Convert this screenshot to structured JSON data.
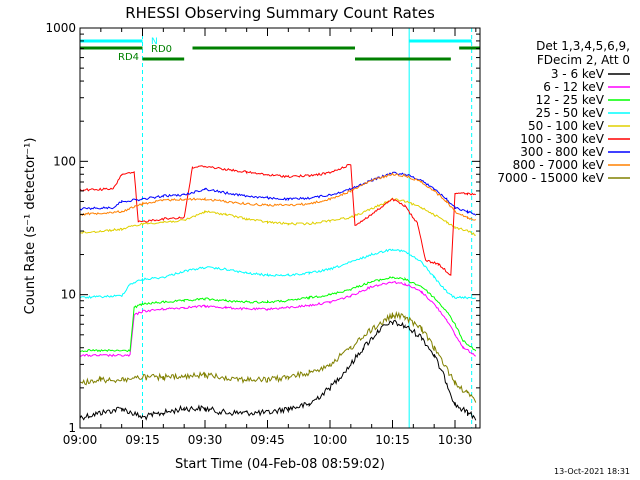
{
  "chart_data": {
    "type": "line",
    "title": "RHESSI Observing Summary Count Rates",
    "xlabel": "Start Time (04-Feb-08 08:59:02)",
    "ylabel": "Count Rate (s⁻¹ detector⁻¹)",
    "y_scale": "log",
    "ylim": [
      1,
      1000
    ],
    "xlim": [
      "09:00",
      "10:36"
    ],
    "x_ticks": [
      "09:00",
      "09:15",
      "09:30",
      "09:45",
      "10:00",
      "10:15",
      "10:30"
    ],
    "y_ticks": [
      "1",
      "10",
      "100",
      "1000"
    ],
    "grid": false,
    "footer_date": "13-Oct-2021 18:31",
    "legend_header": [
      "Det 1,3,4,5,6,9,",
      "FDecim 2, Att 0"
    ],
    "legend_position": "right",
    "markers": {
      "vlines_solid": [
        "09:00",
        "10:19"
      ],
      "vlines_dashed": [
        "09:15",
        "10:34"
      ]
    },
    "flags": [
      {
        "label": "N",
        "color": "#00ffff",
        "segments": [
          [
            "09:00",
            "09:15"
          ],
          [
            "10:19",
            "10:34"
          ]
        ]
      },
      {
        "label": "RD0",
        "color": "#008000",
        "segments": [
          [
            "09:00",
            "09:15"
          ],
          [
            "09:27",
            "10:06"
          ],
          [
            "10:31",
            "10:36"
          ]
        ]
      },
      {
        "label": "RD4",
        "color": "#008000",
        "segments": [
          [
            "09:15",
            "09:25"
          ],
          [
            "10:06",
            "10:29"
          ]
        ]
      }
    ],
    "series": [
      {
        "name": "3 - 6 keV",
        "color": "#000000",
        "points": [
          [
            "09:00",
            1.2
          ],
          [
            "09:05",
            1.3
          ],
          [
            "09:10",
            1.4
          ],
          [
            "09:15",
            1.2
          ],
          [
            "09:20",
            1.3
          ],
          [
            "09:25",
            1.4
          ],
          [
            "09:30",
            1.4
          ],
          [
            "09:35",
            1.3
          ],
          [
            "09:40",
            1.3
          ],
          [
            "09:45",
            1.3
          ],
          [
            "09:50",
            1.4
          ],
          [
            "09:55",
            1.5
          ],
          [
            "10:00",
            2.0
          ],
          [
            "10:05",
            3.0
          ],
          [
            "10:08",
            4.0
          ],
          [
            "10:12",
            5.5
          ],
          [
            "10:15",
            6.2
          ],
          [
            "10:18",
            5.8
          ],
          [
            "10:22",
            4.8
          ],
          [
            "10:25",
            3.5
          ],
          [
            "10:28",
            2.2
          ],
          [
            "10:30",
            1.5
          ],
          [
            "10:33",
            1.3
          ],
          [
            "10:35",
            1.2
          ]
        ]
      },
      {
        "name": "6 - 12 keV",
        "color": "#ff00ff",
        "points": [
          [
            "09:00",
            3.5
          ],
          [
            "09:12",
            3.5
          ],
          [
            "09:13",
            7.0
          ],
          [
            "09:15",
            7.5
          ],
          [
            "09:20",
            7.8
          ],
          [
            "09:25",
            8.0
          ],
          [
            "09:30",
            8.2
          ],
          [
            "09:35",
            8.0
          ],
          [
            "09:40",
            7.8
          ],
          [
            "09:45",
            7.8
          ],
          [
            "09:50",
            8.0
          ],
          [
            "09:55",
            8.3
          ],
          [
            "10:00",
            8.8
          ],
          [
            "10:05",
            9.8
          ],
          [
            "10:10",
            11.5
          ],
          [
            "10:15",
            12.5
          ],
          [
            "10:18",
            12.0
          ],
          [
            "10:22",
            10.5
          ],
          [
            "10:25",
            8.5
          ],
          [
            "10:28",
            6.5
          ],
          [
            "10:30",
            5.0
          ],
          [
            "10:32",
            4.0
          ],
          [
            "10:35",
            3.5
          ]
        ]
      },
      {
        "name": "12 - 25 keV",
        "color": "#00ff00",
        "points": [
          [
            "09:00",
            3.8
          ],
          [
            "09:12",
            3.8
          ],
          [
            "09:13",
            8.0
          ],
          [
            "09:15",
            8.5
          ],
          [
            "09:20",
            8.8
          ],
          [
            "09:25",
            9.0
          ],
          [
            "09:30",
            9.3
          ],
          [
            "09:35",
            9.0
          ],
          [
            "09:40",
            8.8
          ],
          [
            "09:45",
            8.8
          ],
          [
            "09:50",
            9.0
          ],
          [
            "09:55",
            9.5
          ],
          [
            "10:00",
            10.0
          ],
          [
            "10:05",
            11.0
          ],
          [
            "10:10",
            12.5
          ],
          [
            "10:15",
            13.5
          ],
          [
            "10:18",
            13.0
          ],
          [
            "10:22",
            11.5
          ],
          [
            "10:25",
            9.5
          ],
          [
            "10:28",
            7.5
          ],
          [
            "10:30",
            6.0
          ],
          [
            "10:32",
            4.5
          ],
          [
            "10:35",
            3.8
          ]
        ]
      },
      {
        "name": "25 - 50 keV",
        "color": "#00ffff",
        "points": [
          [
            "09:00",
            9.5
          ],
          [
            "09:10",
            9.8
          ],
          [
            "09:12",
            12.0
          ],
          [
            "09:15",
            13.0
          ],
          [
            "09:20",
            13.5
          ],
          [
            "09:25",
            15.0
          ],
          [
            "09:30",
            16.0
          ],
          [
            "09:35",
            15.5
          ],
          [
            "09:40",
            14.5
          ],
          [
            "09:45",
            14.0
          ],
          [
            "09:50",
            14.0
          ],
          [
            "09:55",
            14.5
          ],
          [
            "10:00",
            15.5
          ],
          [
            "10:05",
            17.5
          ],
          [
            "10:10",
            20.0
          ],
          [
            "10:15",
            22.0
          ],
          [
            "10:18",
            21.0
          ],
          [
            "10:22",
            17.5
          ],
          [
            "10:25",
            13.5
          ],
          [
            "10:28",
            10.5
          ],
          [
            "10:30",
            9.5
          ],
          [
            "10:33",
            9.5
          ],
          [
            "10:35",
            9.5
          ]
        ]
      },
      {
        "name": "50 - 100 keV",
        "color": "#e0d000",
        "points": [
          [
            "09:00",
            29
          ],
          [
            "09:10",
            31
          ],
          [
            "09:15",
            34
          ],
          [
            "09:20",
            35
          ],
          [
            "09:25",
            36
          ],
          [
            "09:30",
            42
          ],
          [
            "09:35",
            40
          ],
          [
            "09:40",
            37
          ],
          [
            "09:45",
            35
          ],
          [
            "09:50",
            34
          ],
          [
            "09:55",
            34
          ],
          [
            "10:00",
            36
          ],
          [
            "10:05",
            38
          ],
          [
            "10:10",
            44
          ],
          [
            "10:15",
            52
          ],
          [
            "10:18",
            50
          ],
          [
            "10:22",
            45
          ],
          [
            "10:25",
            40
          ],
          [
            "10:28",
            35
          ],
          [
            "10:30",
            32
          ],
          [
            "10:33",
            30
          ],
          [
            "10:35",
            28
          ]
        ]
      },
      {
        "name": "100 - 300 keV",
        "color": "#ff0000",
        "points": [
          [
            "09:00",
            61
          ],
          [
            "09:08",
            62
          ],
          [
            "09:10",
            80
          ],
          [
            "09:13",
            82
          ],
          [
            "09:14",
            35
          ],
          [
            "09:20",
            37
          ],
          [
            "09:25",
            38
          ],
          [
            "09:27",
            90
          ],
          [
            "09:30",
            92
          ],
          [
            "09:35",
            87
          ],
          [
            "09:40",
            83
          ],
          [
            "09:45",
            79
          ],
          [
            "09:50",
            77
          ],
          [
            "09:55",
            78
          ],
          [
            "10:00",
            82
          ],
          [
            "10:05",
            95
          ],
          [
            "10:06",
            33
          ],
          [
            "10:10",
            40
          ],
          [
            "10:15",
            52
          ],
          [
            "10:18",
            46
          ],
          [
            "10:21",
            34
          ],
          [
            "10:23",
            18
          ],
          [
            "10:26",
            17
          ],
          [
            "10:29",
            14
          ],
          [
            "10:30",
            58
          ],
          [
            "10:33",
            57
          ],
          [
            "10:35",
            56
          ]
        ]
      },
      {
        "name": "300 - 800 keV",
        "color": "#0000ff",
        "points": [
          [
            "09:00",
            44
          ],
          [
            "09:08",
            45
          ],
          [
            "09:10",
            50
          ],
          [
            "09:15",
            52
          ],
          [
            "09:20",
            55
          ],
          [
            "09:25",
            56
          ],
          [
            "09:30",
            62
          ],
          [
            "09:35",
            58
          ],
          [
            "09:40",
            55
          ],
          [
            "09:45",
            53
          ],
          [
            "09:50",
            52
          ],
          [
            "09:55",
            53
          ],
          [
            "10:00",
            56
          ],
          [
            "10:05",
            62
          ],
          [
            "10:10",
            72
          ],
          [
            "10:15",
            82
          ],
          [
            "10:18",
            80
          ],
          [
            "10:22",
            72
          ],
          [
            "10:25",
            62
          ],
          [
            "10:28",
            52
          ],
          [
            "10:30",
            45
          ],
          [
            "10:33",
            42
          ],
          [
            "10:35",
            40
          ]
        ]
      },
      {
        "name": "800 - 7000 keV",
        "color": "#ff8000",
        "points": [
          [
            "09:00",
            40
          ],
          [
            "09:10",
            42
          ],
          [
            "09:15",
            48
          ],
          [
            "09:20",
            51
          ],
          [
            "09:25",
            52
          ],
          [
            "09:30",
            52
          ],
          [
            "09:35",
            50
          ],
          [
            "09:40",
            48
          ],
          [
            "09:45",
            47
          ],
          [
            "09:50",
            47
          ],
          [
            "09:55",
            48
          ],
          [
            "10:00",
            52
          ],
          [
            "10:05",
            60
          ],
          [
            "10:10",
            72
          ],
          [
            "10:15",
            80
          ],
          [
            "10:18",
            78
          ],
          [
            "10:22",
            70
          ],
          [
            "10:25",
            60
          ],
          [
            "10:28",
            50
          ],
          [
            "10:30",
            42
          ],
          [
            "10:33",
            38
          ],
          [
            "10:35",
            36
          ]
        ]
      },
      {
        "name": "7000 - 15000 keV",
        "color": "#808000",
        "points": [
          [
            "09:00",
            2.2
          ],
          [
            "09:05",
            2.3
          ],
          [
            "09:10",
            2.3
          ],
          [
            "09:15",
            2.4
          ],
          [
            "09:20",
            2.4
          ],
          [
            "09:25",
            2.4
          ],
          [
            "09:30",
            2.5
          ],
          [
            "09:35",
            2.4
          ],
          [
            "09:40",
            2.3
          ],
          [
            "09:45",
            2.3
          ],
          [
            "09:50",
            2.4
          ],
          [
            "09:55",
            2.6
          ],
          [
            "10:00",
            3.0
          ],
          [
            "10:05",
            4.0
          ],
          [
            "10:10",
            5.5
          ],
          [
            "10:15",
            7.0
          ],
          [
            "10:18",
            6.8
          ],
          [
            "10:22",
            5.5
          ],
          [
            "10:25",
            4.0
          ],
          [
            "10:28",
            2.8
          ],
          [
            "10:30",
            2.2
          ],
          [
            "10:33",
            1.8
          ],
          [
            "10:35",
            1.6
          ]
        ]
      }
    ]
  }
}
